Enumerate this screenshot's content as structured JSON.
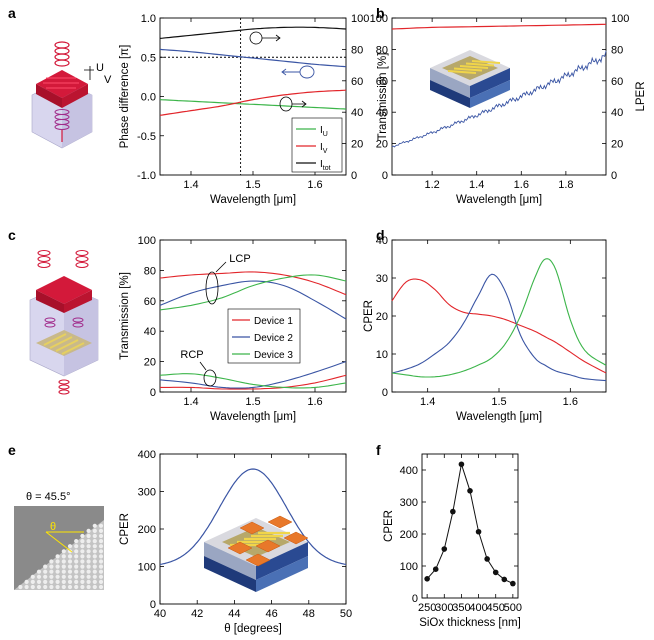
{
  "panels": {
    "a": "a",
    "b": "b",
    "c": "c",
    "d": "d",
    "e": "e",
    "f": "f"
  },
  "schematic_labels": {
    "u": "U",
    "v": "V",
    "theta_value": "θ = 45.5°",
    "theta_symbol": "θ"
  },
  "chart_data": [
    {
      "id": "a",
      "type": "line",
      "xlabel": "Wavelength [μm]",
      "ylabel": "Phase difference [π]",
      "xlim": [
        1.35,
        1.65
      ],
      "ylim": [
        -1.0,
        1.0
      ],
      "y2lim": [
        0,
        100
      ],
      "xticks": [
        1.4,
        1.5,
        1.6
      ],
      "yticks": [
        -1.0,
        -0.5,
        0.0,
        0.5,
        1.0
      ],
      "y2ticks": [
        0,
        20,
        40,
        60,
        80,
        100
      ],
      "x": [
        1.35,
        1.4,
        1.45,
        1.5,
        1.55,
        1.6,
        1.65
      ],
      "series": [
        {
          "name": "phase",
          "axis": "left",
          "color": "#3a55a4",
          "values": [
            0.6,
            0.57,
            0.53,
            0.49,
            0.45,
            0.41,
            0.38
          ]
        },
        {
          "name": "I_U",
          "axis": "right",
          "color": "#3cb54a",
          "values": [
            48,
            47,
            46,
            45,
            44,
            43,
            42
          ]
        },
        {
          "name": "I_V",
          "axis": "right",
          "color": "#e2262b",
          "values": [
            38,
            41,
            44,
            48,
            51,
            53,
            54
          ]
        },
        {
          "name": "I_tot",
          "axis": "right",
          "color": "#111111",
          "values": [
            87,
            89,
            91,
            93,
            94,
            94,
            93
          ]
        }
      ],
      "legend": [
        {
          "label": "I",
          "sub": "U",
          "color": "#3cb54a"
        },
        {
          "label": "I",
          "sub": "V",
          "color": "#e2262b"
        },
        {
          "label": "I",
          "sub": "tot",
          "color": "#111111"
        }
      ],
      "hline": 0.5,
      "vline": 1.48,
      "legend_position": "bottom-right"
    },
    {
      "id": "b",
      "type": "line",
      "xlabel": "Wavelength [μm]",
      "ylabel": "Transmission [%]",
      "y2label": "LPER",
      "xlim": [
        1.02,
        1.98
      ],
      "ylim": [
        0,
        100
      ],
      "y2lim": [
        0,
        100
      ],
      "xticks": [
        1.2,
        1.4,
        1.6,
        1.8
      ],
      "yticks": [
        0,
        20,
        40,
        60,
        80,
        100
      ],
      "y2ticks": [
        0,
        20,
        40,
        60,
        80,
        100
      ],
      "x": [
        1.02,
        1.2,
        1.4,
        1.6,
        1.8,
        1.98
      ],
      "series": [
        {
          "name": "Transmission",
          "axis": "left",
          "color": "#e2262b",
          "values": [
            93,
            94,
            94.5,
            95,
            95.5,
            96
          ]
        },
        {
          "name": "LPER",
          "axis": "right",
          "color": "#3a55a4",
          "values": [
            18,
            27,
            38,
            50,
            63,
            76
          ]
        }
      ]
    },
    {
      "id": "c",
      "type": "line",
      "xlabel": "Wavelength [μm]",
      "ylabel": "Transmission [%]",
      "xlim": [
        1.35,
        1.65
      ],
      "ylim": [
        0,
        100
      ],
      "xticks": [
        1.4,
        1.5,
        1.6
      ],
      "yticks": [
        0,
        20,
        40,
        60,
        80,
        100
      ],
      "x": [
        1.35,
        1.4,
        1.45,
        1.5,
        1.55,
        1.6,
        1.65
      ],
      "series": [
        {
          "name": "Device 1",
          "color": "#e2262b",
          "values": [
            75,
            77,
            78,
            79,
            77,
            72,
            64
          ]
        },
        {
          "name": "Device 2",
          "color": "#3a55a4",
          "values": [
            57,
            65,
            70,
            73,
            70,
            60,
            48
          ]
        },
        {
          "name": "Device 3",
          "color": "#3cb54a",
          "values": [
            54,
            57,
            62,
            70,
            75,
            77,
            73
          ]
        },
        {
          "name": "Device 1 RCP",
          "color": "#e2262b",
          "values": [
            3,
            3,
            2,
            2,
            3,
            6,
            11
          ]
        },
        {
          "name": "Device 2 RCP",
          "color": "#3a55a4",
          "values": [
            8,
            6,
            3,
            3,
            7,
            13,
            20
          ]
        },
        {
          "name": "Device 3 RCP",
          "color": "#3cb54a",
          "values": [
            11,
            12,
            9,
            5,
            3,
            3,
            6
          ]
        }
      ],
      "legend": [
        {
          "label": "Device 1",
          "color": "#e2262b"
        },
        {
          "label": "Device 2",
          "color": "#3a55a4"
        },
        {
          "label": "Device 3",
          "color": "#3cb54a"
        }
      ],
      "annotations": [
        "LCP",
        "RCP"
      ],
      "legend_position": "center-right"
    },
    {
      "id": "d",
      "type": "line",
      "xlabel": "Wavelength [μm]",
      "ylabel": "CPER",
      "xlim": [
        1.35,
        1.65
      ],
      "ylim": [
        0,
        40
      ],
      "xticks": [
        1.4,
        1.5,
        1.6
      ],
      "yticks": [
        0,
        10,
        20,
        30,
        40
      ],
      "x": [
        1.35,
        1.37,
        1.39,
        1.41,
        1.43,
        1.45,
        1.47,
        1.49,
        1.51,
        1.53,
        1.55,
        1.565,
        1.58,
        1.6,
        1.62,
        1.65
      ],
      "series": [
        {
          "name": "Device 1",
          "color": "#e2262b",
          "values": [
            24,
            29,
            29.5,
            27,
            23,
            21,
            20.5,
            20,
            19,
            17.5,
            16,
            14.5,
            13,
            10.5,
            8,
            5
          ]
        },
        {
          "name": "Device 2",
          "color": "#3a55a4",
          "values": [
            5,
            6,
            7.5,
            10,
            13,
            18,
            25,
            31,
            26,
            15,
            9,
            7,
            5.5,
            4.5,
            3.5,
            3
          ]
        },
        {
          "name": "Device 3",
          "color": "#3cb54a",
          "values": [
            5,
            4.5,
            4,
            4,
            4.5,
            5.5,
            7,
            9,
            13,
            20,
            30,
            35,
            32,
            19,
            11,
            7
          ]
        }
      ]
    },
    {
      "id": "e",
      "type": "line",
      "xlabel": "θ [degrees]",
      "ylabel": "CPER",
      "xlim": [
        40,
        50
      ],
      "ylim": [
        0,
        400
      ],
      "xticks": [
        40,
        42,
        44,
        46,
        48,
        50
      ],
      "yticks": [
        0,
        100,
        200,
        300,
        400
      ],
      "series": [
        {
          "name": "CPER",
          "color": "#3a55a4",
          "peak_x": 45.0,
          "peak_y": 360,
          "base": 100,
          "width": 1.8
        }
      ]
    },
    {
      "id": "f",
      "type": "line",
      "xlabel": "SiOx thickness [nm]",
      "ylabel": "CPER",
      "xlim": [
        235,
        515
      ],
      "ylim": [
        0,
        450
      ],
      "xticks": [
        250,
        300,
        350,
        400,
        450,
        500
      ],
      "yticks": [
        0,
        100,
        200,
        300,
        400
      ],
      "x": [
        250,
        275,
        300,
        325,
        350,
        375,
        400,
        425,
        450,
        475,
        500
      ],
      "series": [
        {
          "name": "CPER",
          "color": "#111111",
          "values": [
            60,
            90,
            153,
            270,
            418,
            335,
            207,
            122,
            80,
            58,
            45
          ]
        }
      ]
    }
  ]
}
